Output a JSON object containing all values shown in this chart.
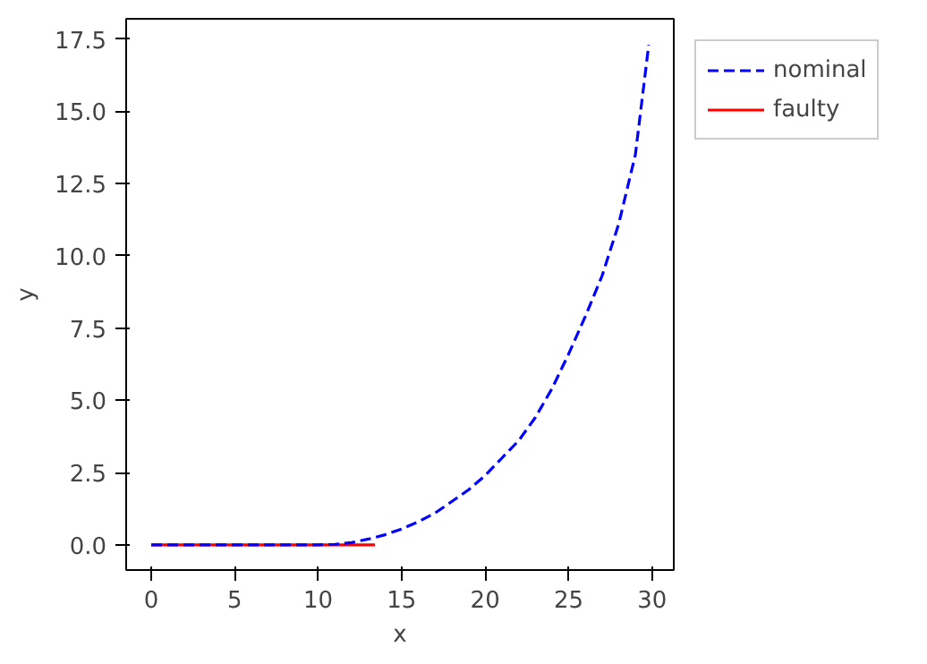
{
  "chart_data": {
    "type": "line",
    "xlabel": "x",
    "ylabel": "y",
    "xlim": [
      -1.5,
      31.3
    ],
    "ylim": [
      -0.87,
      18.2
    ],
    "xticks": [
      0,
      5,
      10,
      15,
      20,
      25,
      30
    ],
    "yticks": [
      {
        "value": 0,
        "label": "0.0"
      },
      {
        "value": 2.5,
        "label": "2.5"
      },
      {
        "value": 5,
        "label": "5.0"
      },
      {
        "value": 7.5,
        "label": "7.5"
      },
      {
        "value": 10,
        "label": "10.0"
      },
      {
        "value": 12.5,
        "label": "12.5"
      },
      {
        "value": 15,
        "label": "15.0"
      },
      {
        "value": 17.5,
        "label": "17.5"
      }
    ],
    "grid": false,
    "legend": "top right",
    "marker": "none",
    "series": [
      {
        "name": "nominal",
        "color": "#0000ff",
        "line_style": "dashed",
        "x": [
          0,
          5,
          10,
          11,
          12,
          13,
          14,
          15,
          16,
          17,
          18,
          19,
          20,
          21,
          22,
          23,
          24,
          25,
          26,
          27,
          28,
          29,
          29.8
        ],
        "values": [
          0,
          0,
          0,
          0.02,
          0.08,
          0.2,
          0.35,
          0.55,
          0.8,
          1.1,
          1.5,
          1.9,
          2.4,
          3.0,
          3.6,
          4.4,
          5.4,
          6.6,
          7.9,
          9.3,
          11.1,
          13.5,
          17.3
        ]
      },
      {
        "name": "faulty",
        "color": "#ff0000",
        "line_style": "solid",
        "x": [
          0,
          13.4
        ],
        "values": [
          0,
          0
        ]
      }
    ]
  }
}
